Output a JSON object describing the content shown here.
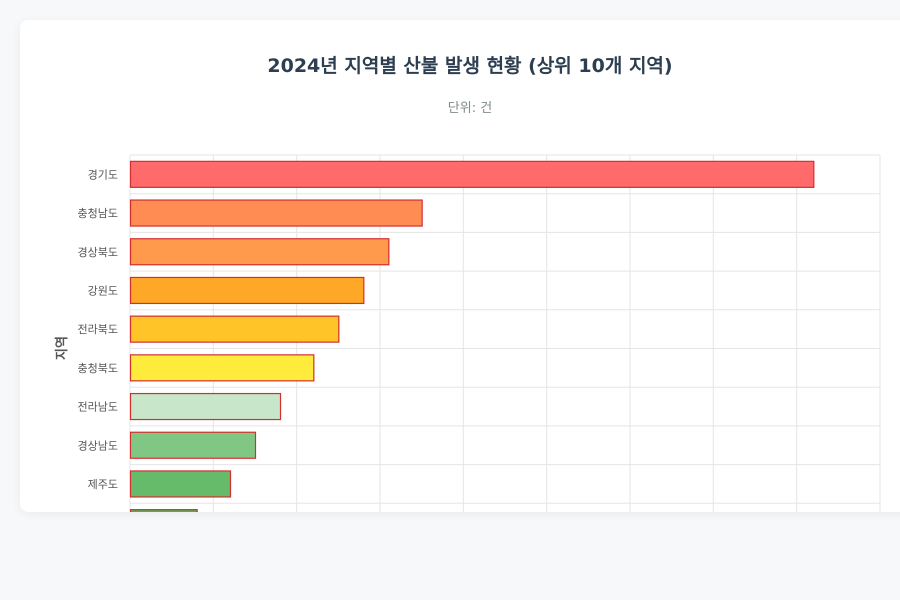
{
  "chart_data": {
    "type": "bar",
    "orientation": "horizontal",
    "title": "2024년 지역별 산불 발생 현황 (상위 10개 지역)",
    "subtitle": "단위: 건",
    "ylabel": "지역",
    "xlabel": "",
    "categories": [
      "경기도",
      "충청남도",
      "경상북도",
      "강원도",
      "전라북도",
      "충청북도",
      "전라남도",
      "경상남도",
      "제주도",
      ""
    ],
    "values": [
      82,
      35,
      31,
      28,
      25,
      22,
      18,
      15,
      12,
      8
    ],
    "xlim": [
      0,
      90
    ],
    "grid": true,
    "colors": {
      "bars": [
        "#ff6b6b",
        "#ff8c52",
        "#ff9a4d",
        "#ffa726",
        "#ffc528",
        "#ffeb3b",
        "#c8e6c9",
        "#81c784",
        "#66bb6a",
        "#4caf50"
      ],
      "bar_border": "#d32f2f",
      "title": "#2c3e50",
      "subtitle": "#7f8c8d",
      "grid": "#e5e5e5",
      "tick_label": "#555555"
    }
  }
}
